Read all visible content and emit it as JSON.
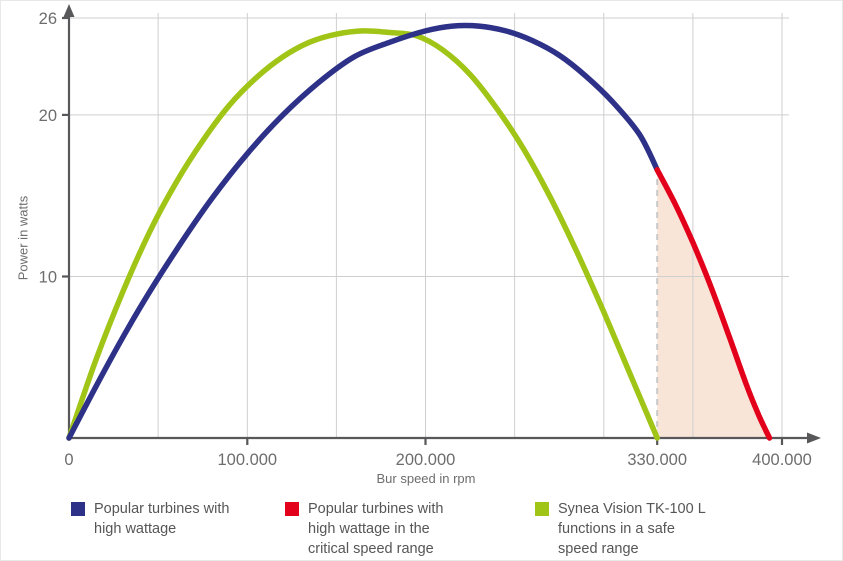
{
  "chart_data": {
    "type": "line",
    "title": "",
    "xlabel": "Bur speed in rpm",
    "ylabel": "Power in watts",
    "xlim": [
      0,
      400000
    ],
    "ylim": [
      0,
      26
    ],
    "grid": true,
    "x_grid_step": 50000,
    "y_gridlines": [
      10,
      20,
      26
    ],
    "x_ticks": [
      {
        "value": 0,
        "label": "0"
      },
      {
        "value": 100000,
        "label": "100.000"
      },
      {
        "value": 200000,
        "label": "200.000"
      },
      {
        "value": 330000,
        "label": "330.000"
      },
      {
        "value": 400000,
        "label": "400.000"
      }
    ],
    "y_ticks": [
      {
        "value": 10,
        "label": "10"
      },
      {
        "value": 20,
        "label": "20"
      },
      {
        "value": 26,
        "label": "26"
      }
    ],
    "critical_range": {
      "from_rpm": 330000,
      "to_rpm": 393000,
      "fill_color": "#f9e5d8",
      "boundary_style": "dashed"
    },
    "series": [
      {
        "id": "green",
        "name": "Synea Vision TK-100 L functions in a safe speed range",
        "color": "#a1c517",
        "points": [
          [
            0,
            0
          ],
          [
            15000,
            4.8
          ],
          [
            30000,
            9.0
          ],
          [
            45000,
            12.7
          ],
          [
            60000,
            15.8
          ],
          [
            75000,
            18.4
          ],
          [
            90000,
            20.6
          ],
          [
            105000,
            22.3
          ],
          [
            120000,
            23.6
          ],
          [
            135000,
            24.5
          ],
          [
            150000,
            25.0
          ],
          [
            165000,
            25.2
          ],
          [
            180000,
            25.1
          ],
          [
            195000,
            24.9
          ],
          [
            210000,
            24.0
          ],
          [
            225000,
            22.5
          ],
          [
            240000,
            20.4
          ],
          [
            255000,
            17.9
          ],
          [
            270000,
            14.9
          ],
          [
            285000,
            11.5
          ],
          [
            300000,
            7.8
          ],
          [
            315000,
            3.9
          ],
          [
            330000,
            0
          ]
        ]
      },
      {
        "id": "blue",
        "name": "Popular turbines with high wattage",
        "color": "#2d3187",
        "points": [
          [
            0,
            0
          ],
          [
            20000,
            4.2
          ],
          [
            40000,
            8.1
          ],
          [
            60000,
            11.6
          ],
          [
            80000,
            14.8
          ],
          [
            100000,
            17.6
          ],
          [
            120000,
            20.0
          ],
          [
            140000,
            22.0
          ],
          [
            160000,
            23.6
          ],
          [
            180000,
            24.5
          ],
          [
            200000,
            25.2
          ],
          [
            215000,
            25.5
          ],
          [
            230000,
            25.5
          ],
          [
            245000,
            25.2
          ],
          [
            260000,
            24.6
          ],
          [
            275000,
            23.7
          ],
          [
            290000,
            22.4
          ],
          [
            305000,
            20.8
          ],
          [
            320000,
            18.8
          ],
          [
            330000,
            16.6
          ]
        ]
      },
      {
        "id": "red",
        "name": "Popular turbines with high wattage in the critical speed range",
        "color": "#e2001a",
        "points": [
          [
            330000,
            16.6
          ],
          [
            340000,
            14.5
          ],
          [
            350000,
            12.1
          ],
          [
            360000,
            9.4
          ],
          [
            370000,
            6.4
          ],
          [
            380000,
            3.3
          ],
          [
            387000,
            1.4
          ],
          [
            393000,
            0
          ]
        ]
      }
    ]
  },
  "legend": {
    "items": [
      {
        "color": "#2d3187",
        "label": "Popular turbines with\nhigh wattage"
      },
      {
        "color": "#e2001a",
        "label": "Popular turbines with\nhigh wattage in the\ncritical speed range"
      },
      {
        "color": "#a1c517",
        "label": "Synea Vision TK-100 L\nfunctions in a safe\nspeed range"
      }
    ]
  }
}
